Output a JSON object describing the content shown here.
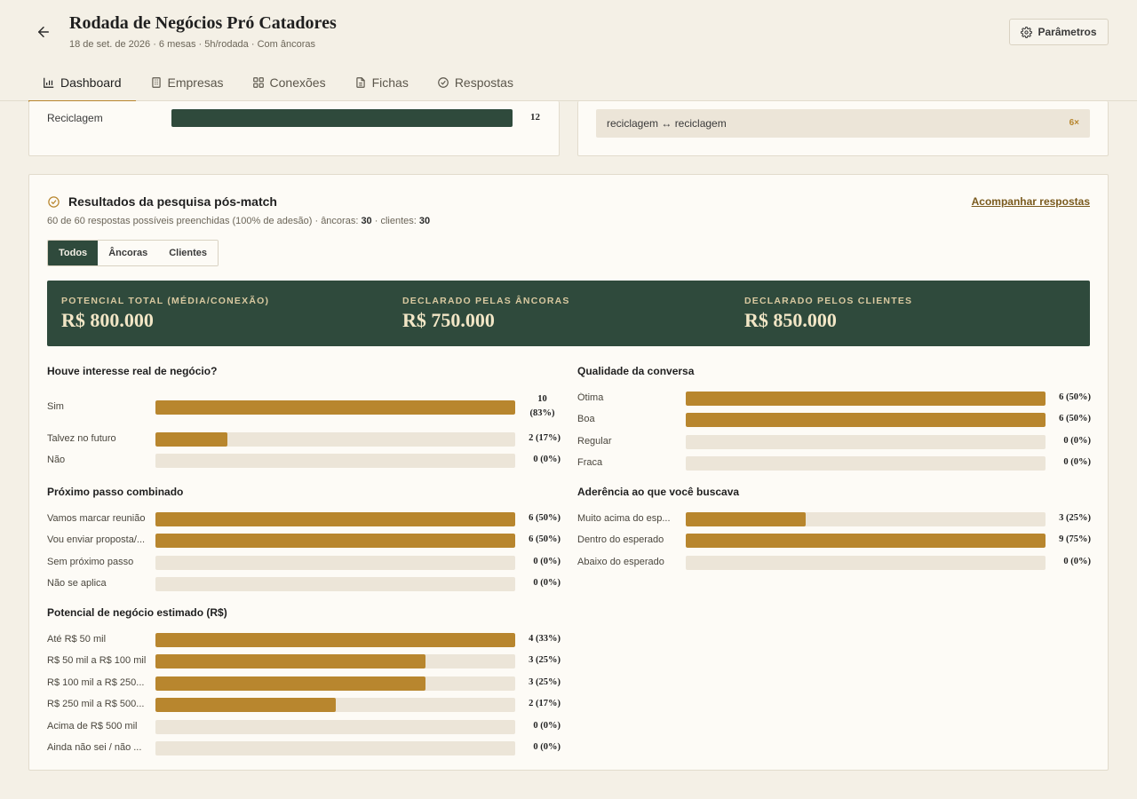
{
  "header": {
    "title": "Rodada de Negócios Pró Catadores",
    "subtitle": "18 de set. de 2026 · 6 mesas · 5h/rodada · Com âncoras",
    "params_label": "Parâmetros"
  },
  "tabs": [
    {
      "label": "Dashboard",
      "icon": "bar-chart-icon",
      "active": true
    },
    {
      "label": "Empresas",
      "icon": "building-icon",
      "active": false
    },
    {
      "label": "Conexões",
      "icon": "grid-icon",
      "active": false
    },
    {
      "label": "Fichas",
      "icon": "document-icon",
      "active": false
    },
    {
      "label": "Respostas",
      "icon": "check-circle-icon",
      "active": false
    }
  ],
  "sectors": {
    "label": "Reciclagem",
    "value": "12",
    "fraction": 1.0
  },
  "pairs": {
    "text": "reciclagem ↔ reciclagem",
    "count": "6×"
  },
  "survey": {
    "title": "Resultados da pesquisa pós-match",
    "sub_prefix": "60 de 60 respostas possíveis preenchidas (100% de adesão) · âncoras: ",
    "anchors": "30",
    "sub_mid": " · clientes: ",
    "clients": "30",
    "follow_link": "Acompanhar respostas",
    "filters": [
      {
        "label": "Todos",
        "active": true
      },
      {
        "label": "Âncoras",
        "active": false
      },
      {
        "label": "Clientes",
        "active": false
      }
    ],
    "kpis": [
      {
        "label": "POTENCIAL TOTAL (MÉDIA/CONEXÃO)",
        "value": "R$ 800.000"
      },
      {
        "label": "DECLARADO PELAS ÂNCORAS",
        "value": "R$ 750.000"
      },
      {
        "label": "DECLARADO PELOS CLIENTES",
        "value": "R$ 850.000"
      }
    ]
  },
  "questions": {
    "interest": {
      "title": "Houve interesse real de negócio?",
      "rows": [
        {
          "label": "Sim",
          "value": "10 (83%)",
          "fraction": 1.0
        },
        {
          "label": "Talvez no futuro",
          "value": "2 (17%)",
          "fraction": 0.2
        },
        {
          "label": "Não",
          "value": "0 (0%)",
          "fraction": 0
        }
      ]
    },
    "quality": {
      "title": "Qualidade da conversa",
      "rows": [
        {
          "label": "Ótima",
          "value": "6 (50%)",
          "fraction": 1.0
        },
        {
          "label": "Boa",
          "value": "6 (50%)",
          "fraction": 1.0
        },
        {
          "label": "Regular",
          "value": "0 (0%)",
          "fraction": 0
        },
        {
          "label": "Fraca",
          "value": "0 (0%)",
          "fraction": 0
        }
      ]
    },
    "next_step": {
      "title": "Próximo passo combinado",
      "rows": [
        {
          "label": "Vamos marcar reunião",
          "value": "6 (50%)",
          "fraction": 1.0
        },
        {
          "label": "Vou enviar proposta/...",
          "value": "6 (50%)",
          "fraction": 1.0
        },
        {
          "label": "Sem próximo passo",
          "value": "0 (0%)",
          "fraction": 0
        },
        {
          "label": "Não se aplica",
          "value": "0 (0%)",
          "fraction": 0
        }
      ]
    },
    "adherence": {
      "title": "Aderência ao que você buscava",
      "rows": [
        {
          "label": "Muito acima do esp...",
          "value": "3 (25%)",
          "fraction": 0.333
        },
        {
          "label": "Dentro do esperado",
          "value": "9 (75%)",
          "fraction": 1.0
        },
        {
          "label": "Abaixo do esperado",
          "value": "0 (0%)",
          "fraction": 0
        }
      ]
    },
    "potential": {
      "title": "Potencial de negócio estimado (R$)",
      "rows": [
        {
          "label": "Até R$ 50 mil",
          "value": "4 (33%)",
          "fraction": 1.0
        },
        {
          "label": "R$ 50 mil a R$ 100 mil",
          "value": "3 (25%)",
          "fraction": 0.75
        },
        {
          "label": "R$ 100 mil a R$ 250...",
          "value": "3 (25%)",
          "fraction": 0.75
        },
        {
          "label": "R$ 250 mil a R$ 500...",
          "value": "2 (17%)",
          "fraction": 0.5
        },
        {
          "label": "Acima de R$ 500 mil",
          "value": "0 (0%)",
          "fraction": 0
        },
        {
          "label": "Ainda não sei / não ...",
          "value": "0 (0%)",
          "fraction": 0
        }
      ]
    }
  },
  "colors": {
    "accent": "#b8862e",
    "dark_green": "#2f4a3c",
    "background": "#f4f0e6",
    "track": "#ece5d8"
  }
}
